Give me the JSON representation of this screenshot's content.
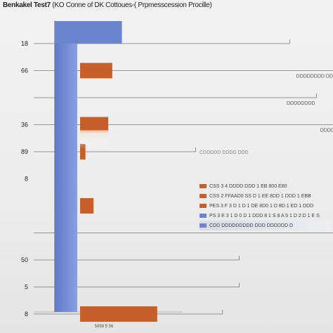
{
  "title": {
    "bold": "Benkakel Test7",
    "rest": "(KO Conne of DK Cottoues-( Prpmesscession Procille)"
  },
  "colors": {
    "blue": "#6b84d0",
    "orange": "#c75f2a",
    "line": "#777777"
  },
  "chart_data": {
    "type": "bar",
    "orientation": "horizontal",
    "title": "Benkakel Test7 (KO Conne of DK Cottoues-( Prpmesscession Procille)",
    "y_tick_labels": [
      {
        "label": "18",
        "row": 0
      },
      {
        "label": "66",
        "row": 1
      },
      {
        "label": "36",
        "row": 3
      },
      {
        "label": "89",
        "row": 4
      },
      {
        "label": "8",
        "row": 5
      },
      {
        "label": "50",
        "row": 8
      },
      {
        "label": "5",
        "row": 9
      },
      {
        "label": "8",
        "row": 10
      }
    ],
    "series": [
      {
        "name": "blue",
        "color": "#6b84d0",
        "bars": [
          {
            "row": 0,
            "value": 100
          },
          {
            "row": 6,
            "value": 15
          }
        ],
        "column_value": 100
      },
      {
        "name": "orange",
        "color": "#c75f2a",
        "bars": [
          {
            "row": 1,
            "value": 48
          },
          {
            "row": 3,
            "value": 42
          },
          {
            "row": 4,
            "value": 8
          },
          {
            "row": 6,
            "value": 20
          },
          {
            "row": 10,
            "value": 115
          }
        ]
      }
    ],
    "reference_lines": [
      {
        "row": 0,
        "end": 350,
        "label": ""
      },
      {
        "row": 1,
        "end": 440,
        "label": "DDDDDDDD DDDD DD"
      },
      {
        "row": 2,
        "end": 390,
        "label": "DDDDDDDD"
      },
      {
        "row": 3,
        "end": 440,
        "label": "DDDDDDDD"
      },
      {
        "row": 4,
        "end": 210,
        "label": ""
      },
      {
        "row": 7,
        "end": 440,
        "label": ""
      },
      {
        "row": 8,
        "end": 275,
        "label": ""
      },
      {
        "row": 9,
        "end": 275,
        "label": ""
      },
      {
        "row": 10,
        "end": 250,
        "label": ""
      }
    ],
    "xlim": [
      0,
      400
    ],
    "x_tick_label": "5858 5 56",
    "legend": {
      "placement": "right",
      "header": "CDDDDD DDDD DDD",
      "entries": [
        {
          "color": "#c75f2a",
          "text": "CSS 3 4 DDDD DDD 1 EB 800 E80"
        },
        {
          "color": "#c75f2a",
          "text": "CSS 2 FFAAD0 SS D 1 EE 8DD 1 DDD 1 EBB"
        },
        {
          "color": "#c75f2a",
          "text": "PES 3 F 3 D 1 D 1 DE 8D0 1 D 8D 1 ED 1 DDD"
        },
        {
          "color": "#6b84d0",
          "text": "PS 3 E 3 1 D 0 D 1 DDD 8 1 S 8 A 5 1 D 2 D 1 E S"
        },
        {
          "color": "#6b84d0",
          "text": "CDD DDDDDDDDD DDD DDDDDD D"
        }
      ]
    }
  }
}
